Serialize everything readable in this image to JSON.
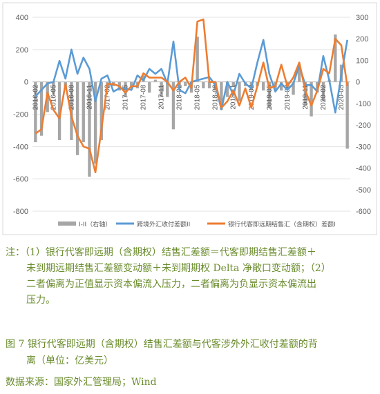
{
  "chart_data": {
    "type": "bar+line",
    "categories": [
      "2016-02",
      "2016-03",
      "2016-04",
      "2016-05",
      "2016-06",
      "2016-07",
      "2016-08",
      "2016-09",
      "2016-10",
      "2016-11",
      "2016-12",
      "2017-01",
      "2017-02",
      "2017-03",
      "2017-04",
      "2017-05",
      "2017-06",
      "2017-07",
      "2017-08",
      "2017-09",
      "2017-10",
      "2017-11",
      "2017-12",
      "2018-01",
      "2018-02",
      "2018-03",
      "2018-04",
      "2018-05",
      "2018-06",
      "2018-07",
      "2018-08",
      "2018-09",
      "2018-10",
      "2018-11",
      "2018-12",
      "2019-01",
      "2019-02",
      "2019-03",
      "2019-04",
      "2019-05",
      "2019-06",
      "2019-07",
      "2019-08",
      "2019-09",
      "2019-10",
      "2019-11",
      "2019-12",
      "2020-01",
      "2020-02",
      "2020-03",
      "2020-04",
      "2020-05",
      "2020-06"
    ],
    "x_tick_labels": [
      "2016-02",
      "2016-05",
      "2016-08",
      "2016-11",
      "2017-02",
      "2017-05",
      "2017-08",
      "2017-11",
      "2018-02",
      "2018-05",
      "2018-08",
      "2018-11",
      "2019-02",
      "2019-05",
      "2019-08",
      "2019-11",
      "2020-02",
      "2020-05"
    ],
    "left_axis": {
      "min": -800,
      "max": 400,
      "ticks": [
        "-800",
        "-600",
        "-400",
        "-200",
        "0",
        "200",
        "400"
      ]
    },
    "right_axis": {
      "min": -600,
      "max": 300,
      "ticks": [
        "-600",
        "-500",
        "-400",
        "-300",
        "-200",
        "-100",
        "0",
        "100",
        "200",
        "300"
      ]
    },
    "series": [
      {
        "name": "I-II（右轴）",
        "kind": "bar",
        "axis": "right",
        "color": "#a6a6a6",
        "values": [
          -280,
          -250,
          -140,
          -60,
          -270,
          -30,
          -270,
          -340,
          -280,
          -440,
          -380,
          -270,
          -30,
          -20,
          -40,
          -70,
          -20,
          -30,
          30,
          -50,
          10,
          -70,
          -70,
          -220,
          -30,
          -20,
          -50,
          210,
          -30,
          -30,
          -40,
          -130,
          -70,
          -20,
          -90,
          -20,
          -40,
          -20,
          -40,
          -120,
          -40,
          -40,
          -30,
          -60,
          70,
          -110,
          -160,
          -50,
          -90,
          10,
          220,
          80,
          -310
        ]
      },
      {
        "name": "跨境外汇收付差额II",
        "kind": "line",
        "axis": "left",
        "color": "#5b9bd5",
        "values": [
          -90,
          -50,
          -10,
          0,
          130,
          20,
          200,
          50,
          150,
          80,
          -120,
          20,
          40,
          -60,
          -40,
          -40,
          -50,
          40,
          10,
          80,
          50,
          80,
          -10,
          250,
          -50,
          -70,
          0,
          10,
          20,
          30,
          -20,
          -170,
          0,
          -80,
          50,
          -10,
          -40,
          120,
          260,
          50,
          -60,
          -10,
          -50,
          -10,
          100,
          -20,
          -20,
          -60,
          160,
          10,
          -190,
          40,
          260
        ]
      },
      {
        "name": "银行代客即远期结售汇（含期权）差额I",
        "kind": "line",
        "axis": "right",
        "color": "#ed7d31",
        "values": [
          -240,
          -220,
          -50,
          -130,
          -170,
          -10,
          -160,
          -250,
          -300,
          -310,
          -420,
          -220,
          -10,
          -10,
          -20,
          -50,
          -20,
          -20,
          40,
          20,
          20,
          20,
          0,
          -40,
          0,
          20,
          -30,
          280,
          290,
          0,
          0,
          -120,
          -90,
          -40,
          -110,
          -30,
          -120,
          -20,
          90,
          -30,
          -20,
          80,
          -20,
          20,
          90,
          -40,
          -110,
          -40,
          60,
          40,
          200,
          170,
          -20
        ]
      }
    ]
  },
  "notes": {
    "line1": "注：（1）银行代客即远期（含期权）结售汇差额＝代客即期结售汇差额＋",
    "line2": "未到期远期结售汇差额变动额＋未到期期权 Delta 净敞口变动额；（2）",
    "line3": "二者偏离为正值显示资本偏流入压力，二者偏离为负显示资本偏流出",
    "line4": "压力。"
  },
  "caption": {
    "line1": "图 7  银行代客即远期（含期权）结售汇差额与代客涉外外汇收付差额的背",
    "line2": "离（单位：亿美元）"
  },
  "source": "数据来源：国家外汇管理局；Wind"
}
